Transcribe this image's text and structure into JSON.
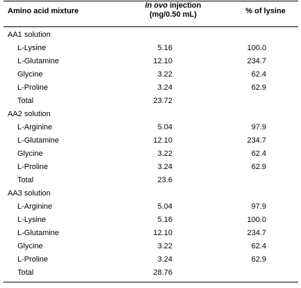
{
  "header": {
    "col1": "Amino acid mixture",
    "col2_italic": "In ovo",
    "col2_rest": " injection",
    "col2_line2": "(mg/0.50 mL)",
    "col3": "% of lysine"
  },
  "rows": [
    {
      "name": "AA1 solution",
      "value": "",
      "pct": "",
      "group": true
    },
    {
      "name": "L-Lysine",
      "value": "5.16",
      "pct": "100.0"
    },
    {
      "name": "L-Glutamine",
      "value": "12.10",
      "pct": "234.7"
    },
    {
      "name": "Glycine",
      "value": "3.22",
      "pct": "62.4"
    },
    {
      "name": "L-Proline",
      "value": "3.24",
      "pct": "62.9"
    },
    {
      "name": "Total",
      "value": "23.72",
      "pct": ""
    },
    {
      "name": "AA2 solution",
      "value": "",
      "pct": "",
      "group": true
    },
    {
      "name": "L-Arginine",
      "value": "5.04",
      "pct": "97.9"
    },
    {
      "name": "L-Glutamine",
      "value": "12.10",
      "pct": "234.7"
    },
    {
      "name": "Glycine",
      "value": "3.22",
      "pct": "62.4"
    },
    {
      "name": "L-Proline",
      "value": "3.24",
      "pct": "62.9"
    },
    {
      "name": "Total",
      "value": "23.6",
      "pct": ""
    },
    {
      "name": "AA3 solution",
      "value": "",
      "pct": "",
      "group": true
    },
    {
      "name": "L-Arginine",
      "value": "5.04",
      "pct": "97.9"
    },
    {
      "name": "L-Lysine",
      "value": "5.16",
      "pct": "100.0"
    },
    {
      "name": "L-Glutamine",
      "value": "12.10",
      "pct": "234.7"
    },
    {
      "name": "Glycine",
      "value": "3.22",
      "pct": "62.4"
    },
    {
      "name": "L-Proline",
      "value": "3.24",
      "pct": "62.9"
    },
    {
      "name": "Total",
      "value": "28.76",
      "pct": ""
    }
  ]
}
